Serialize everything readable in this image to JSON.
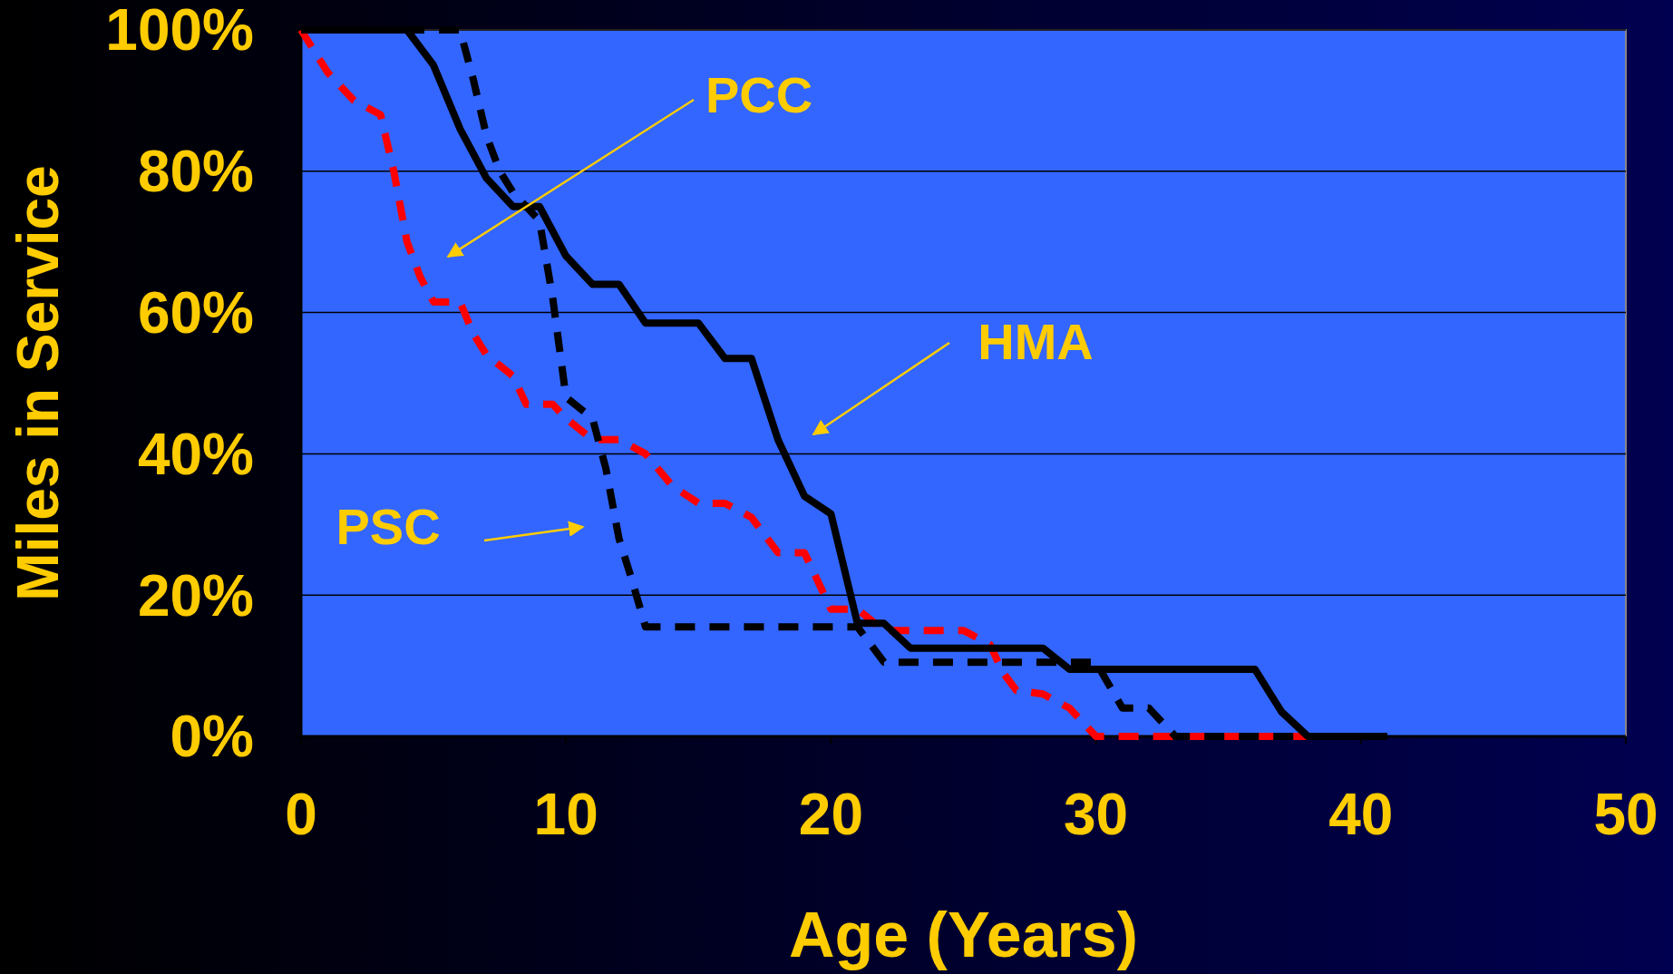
{
  "chart_data": {
    "type": "line",
    "xlabel": "Age (Years)",
    "ylabel": "Miles in Service",
    "xlim": [
      0,
      50
    ],
    "xticks": [
      0,
      10,
      20,
      30,
      40,
      50
    ],
    "ylim": [
      0,
      100
    ],
    "yticks": [
      {
        "value": 0,
        "label": "0%"
      },
      {
        "value": 20,
        "label": "20%"
      },
      {
        "value": 40,
        "label": "40%"
      },
      {
        "value": 60,
        "label": "60%"
      },
      {
        "value": 80,
        "label": "80%"
      },
      {
        "value": 100,
        "label": "100%"
      }
    ],
    "grid": "y",
    "series": [
      {
        "color": "#ff0000",
        "line_style": "dashed",
        "x": [
          0,
          1,
          2,
          3,
          3.5,
          4,
          4.5,
          5,
          6,
          6.5,
          7,
          8,
          8.5,
          9.5,
          10,
          11,
          12,
          13,
          14,
          15,
          16,
          17,
          18,
          19,
          19.5,
          20,
          21,
          22,
          25,
          26,
          26.5,
          27,
          28,
          29,
          30,
          41
        ],
        "values": [
          100,
          94,
          90,
          88,
          80,
          70,
          65,
          61.5,
          61.5,
          57,
          54,
          51,
          47,
          47,
          45,
          42,
          42,
          40,
          35.5,
          33,
          33,
          31,
          26,
          26,
          22,
          18,
          18,
          15,
          15,
          13,
          9,
          6.5,
          6,
          4,
          0,
          0
        ]
      },
      {
        "color": "#000000",
        "line_style": "dashed",
        "x": [
          0,
          6,
          6.5,
          7,
          7.5,
          8,
          9,
          9.5,
          10,
          11,
          11.5,
          12,
          12.5,
          13,
          21,
          22,
          30,
          31,
          32,
          32.5,
          33,
          38
        ],
        "values": [
          100,
          100,
          93,
          85,
          80,
          77,
          73,
          62,
          48,
          45,
          38,
          28,
          22,
          15.5,
          15.5,
          10.5,
          10.5,
          4,
          4,
          2,
          0,
          0
        ]
      },
      {
        "color": "#000000",
        "line_style": "solid",
        "x": [
          0,
          4,
          5,
          6,
          7,
          8,
          9,
          10,
          11,
          12,
          13,
          15,
          16,
          17,
          18,
          19,
          20,
          21,
          22,
          23,
          28,
          29,
          36,
          37,
          38,
          41
        ],
        "values": [
          100,
          100,
          95,
          86,
          79,
          75,
          75,
          68,
          64,
          64,
          58.5,
          58.5,
          53.5,
          53.5,
          42,
          34,
          31.5,
          16,
          16,
          12.5,
          12.5,
          9.5,
          9.5,
          3.5,
          0,
          0
        ]
      }
    ],
    "annotations": [
      "PCC",
      "HMA",
      "PSC"
    ]
  }
}
